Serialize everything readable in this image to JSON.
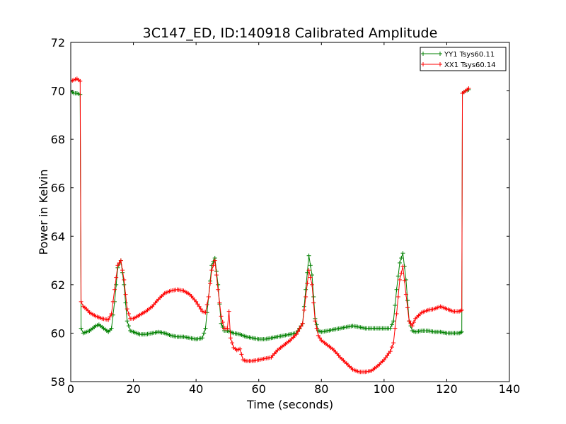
{
  "chart_data": {
    "type": "line",
    "title": "3C147_ED, ID:140918 Calibrated Amplitude",
    "xlabel": "Time (seconds)",
    "ylabel": "Power in Kelvin",
    "xlim": [
      0,
      140
    ],
    "ylim": [
      58,
      72
    ],
    "xticks": [
      0,
      20,
      40,
      60,
      80,
      100,
      120,
      140
    ],
    "yticks": [
      58,
      60,
      62,
      64,
      66,
      68,
      70,
      72
    ],
    "grid": false,
    "legend_position": "top-right",
    "series": [
      {
        "name": "YY1 Tsys60.11",
        "color": "#008000",
        "marker": "+",
        "points": [
          [
            0,
            70.0
          ],
          [
            1,
            69.9
          ],
          [
            2,
            69.9
          ],
          [
            3,
            69.85
          ],
          [
            3.3,
            60.2
          ],
          [
            4,
            60.0
          ],
          [
            6,
            60.1
          ],
          [
            8,
            60.3
          ],
          [
            9,
            60.35
          ],
          [
            10,
            60.25
          ],
          [
            12,
            60.05
          ],
          [
            13,
            60.2
          ],
          [
            14,
            61.3
          ],
          [
            15,
            62.7
          ],
          [
            16,
            63.0
          ],
          [
            17,
            62.0
          ],
          [
            18,
            60.5
          ],
          [
            19,
            60.1
          ],
          [
            20,
            60.05
          ],
          [
            22,
            59.95
          ],
          [
            24,
            59.95
          ],
          [
            26,
            60.0
          ],
          [
            28,
            60.05
          ],
          [
            30,
            60.0
          ],
          [
            32,
            59.9
          ],
          [
            34,
            59.85
          ],
          [
            36,
            59.85
          ],
          [
            38,
            59.8
          ],
          [
            40,
            59.75
          ],
          [
            42,
            59.8
          ],
          [
            43,
            60.2
          ],
          [
            44,
            61.5
          ],
          [
            45,
            62.8
          ],
          [
            46,
            63.1
          ],
          [
            47,
            62.0
          ],
          [
            48,
            60.4
          ],
          [
            49,
            60.1
          ],
          [
            50,
            60.1
          ],
          [
            52,
            60.0
          ],
          [
            54,
            59.95
          ],
          [
            56,
            59.85
          ],
          [
            58,
            59.8
          ],
          [
            60,
            59.75
          ],
          [
            62,
            59.75
          ],
          [
            64,
            59.8
          ],
          [
            66,
            59.85
          ],
          [
            68,
            59.9
          ],
          [
            70,
            59.95
          ],
          [
            72,
            60.0
          ],
          [
            74,
            60.4
          ],
          [
            75,
            61.8
          ],
          [
            76,
            63.2
          ],
          [
            77,
            62.4
          ],
          [
            78,
            60.6
          ],
          [
            79,
            60.1
          ],
          [
            80,
            60.05
          ],
          [
            82,
            60.1
          ],
          [
            84,
            60.15
          ],
          [
            86,
            60.2
          ],
          [
            88,
            60.25
          ],
          [
            90,
            60.3
          ],
          [
            92,
            60.25
          ],
          [
            94,
            60.2
          ],
          [
            96,
            60.2
          ],
          [
            98,
            60.2
          ],
          [
            100,
            60.2
          ],
          [
            102,
            60.2
          ],
          [
            103,
            60.5
          ],
          [
            104,
            61.8
          ],
          [
            105,
            62.9
          ],
          [
            106,
            63.3
          ],
          [
            107,
            62.2
          ],
          [
            108,
            60.5
          ],
          [
            109,
            60.1
          ],
          [
            110,
            60.05
          ],
          [
            112,
            60.1
          ],
          [
            114,
            60.1
          ],
          [
            116,
            60.05
          ],
          [
            118,
            60.05
          ],
          [
            120,
            60.0
          ],
          [
            122,
            60.0
          ],
          [
            124,
            60.0
          ],
          [
            124.8,
            60.05
          ],
          [
            125,
            69.9
          ],
          [
            126,
            70.0
          ],
          [
            127,
            70.05
          ]
        ]
      },
      {
        "name": "XX1 Tsys60.14",
        "color": "#ff0000",
        "marker": "+",
        "points": [
          [
            0,
            70.4
          ],
          [
            1,
            70.45
          ],
          [
            2,
            70.5
          ],
          [
            3,
            70.4
          ],
          [
            3.3,
            61.3
          ],
          [
            4,
            61.1
          ],
          [
            5,
            61.0
          ],
          [
            6,
            60.85
          ],
          [
            8,
            60.7
          ],
          [
            10,
            60.6
          ],
          [
            12,
            60.55
          ],
          [
            13,
            60.8
          ],
          [
            14,
            61.8
          ],
          [
            15,
            62.8
          ],
          [
            16,
            63.0
          ],
          [
            17,
            62.2
          ],
          [
            18,
            61.0
          ],
          [
            19,
            60.6
          ],
          [
            20,
            60.6
          ],
          [
            22,
            60.75
          ],
          [
            24,
            60.9
          ],
          [
            26,
            61.1
          ],
          [
            28,
            61.4
          ],
          [
            30,
            61.65
          ],
          [
            32,
            61.75
          ],
          [
            34,
            61.8
          ],
          [
            36,
            61.75
          ],
          [
            38,
            61.6
          ],
          [
            40,
            61.3
          ],
          [
            42,
            60.9
          ],
          [
            43,
            60.85
          ],
          [
            44,
            61.5
          ],
          [
            45,
            62.6
          ],
          [
            46,
            63.0
          ],
          [
            47,
            61.8
          ],
          [
            48,
            60.7
          ],
          [
            49,
            60.2
          ],
          [
            50,
            60.2
          ],
          [
            50.5,
            60.9
          ],
          [
            51,
            59.8
          ],
          [
            52,
            59.4
          ],
          [
            53,
            59.3
          ],
          [
            54,
            59.35
          ],
          [
            55,
            58.9
          ],
          [
            56,
            58.85
          ],
          [
            58,
            58.85
          ],
          [
            60,
            58.9
          ],
          [
            62,
            58.95
          ],
          [
            64,
            59.0
          ],
          [
            66,
            59.3
          ],
          [
            68,
            59.5
          ],
          [
            70,
            59.7
          ],
          [
            72,
            59.95
          ],
          [
            74,
            60.4
          ],
          [
            75,
            61.5
          ],
          [
            76,
            62.6
          ],
          [
            77,
            62.0
          ],
          [
            78,
            60.5
          ],
          [
            79,
            59.9
          ],
          [
            80,
            59.7
          ],
          [
            82,
            59.5
          ],
          [
            84,
            59.3
          ],
          [
            86,
            59.0
          ],
          [
            88,
            58.75
          ],
          [
            90,
            58.5
          ],
          [
            92,
            58.4
          ],
          [
            94,
            58.4
          ],
          [
            96,
            58.45
          ],
          [
            98,
            58.65
          ],
          [
            100,
            58.9
          ],
          [
            102,
            59.25
          ],
          [
            103,
            59.6
          ],
          [
            104,
            60.8
          ],
          [
            105,
            62.2
          ],
          [
            106,
            62.75
          ],
          [
            107,
            61.6
          ],
          [
            108,
            60.5
          ],
          [
            109,
            60.3
          ],
          [
            110,
            60.6
          ],
          [
            112,
            60.85
          ],
          [
            114,
            60.95
          ],
          [
            116,
            61.0
          ],
          [
            118,
            61.1
          ],
          [
            120,
            61.0
          ],
          [
            122,
            60.9
          ],
          [
            124,
            60.9
          ],
          [
            124.8,
            60.95
          ],
          [
            125,
            69.9
          ],
          [
            126,
            70.0
          ],
          [
            127,
            70.1
          ]
        ]
      }
    ]
  }
}
